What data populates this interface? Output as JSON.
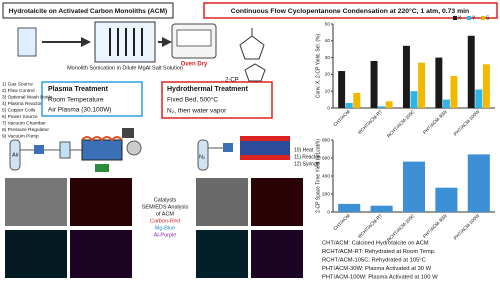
{
  "header": {
    "left_title": "Hydrotalcite on Activated Carbon Monoliths (ACM)",
    "right_title": "Continuous Flow Cyclopentanone Condensation at 220°C, 1 atm, 0.73 min"
  },
  "synthesis": {
    "step1": "Monolith Sonication in Dilute MgAl Salt Solution",
    "step2": "Oven Dry",
    "product": "2-CP"
  },
  "apparatus_legend": [
    "1) Gas Source",
    "2) Flow Control",
    "3) Optional Wash Bottle",
    "4) Plasma Reactor",
    "5) Copper Coils",
    "6) Power Source",
    "7) Vacuum Chamber",
    "8) Pressure Regulator",
    "9) Vacuum Pump"
  ],
  "apparatus_legend_right": [
    "10) Heat",
    "11) Reactor",
    "12) Syringe"
  ],
  "plasma": {
    "title": "Plasma Treatment",
    "items": [
      "Room Temperature",
      "Air Plasma (30,100W)"
    ],
    "gas": "Air"
  },
  "hydrothermal": {
    "title": "Hydrothermal Treatment",
    "items": [
      "Fixed Bed, 500°C",
      "N₂, then water vapor"
    ],
    "gas": "N₂"
  },
  "sem": {
    "caption": [
      "Catalysts",
      "SEM/EDS Analysis",
      "of ACM"
    ],
    "carbon": "Carbon-Red",
    "mg": "Mg-Blue",
    "al": "Al-Purple"
  },
  "definitions": [
    "CHT/ACM: Calcined Hydrotalcite on ACM",
    "RCHT/ACM-RT: Rehydrated at Room Temp.",
    "RCHT/ACM-105C: Rehydrated at 105°C",
    "PHT/ACM-30W: Plasma Activated at 30 W",
    "PHT/ACM-100W: Plasma Activated at 100 W"
  ],
  "chart_data": [
    {
      "type": "bar",
      "ylabel": "Conv. X, 2-CP Yield, Sel. (%)",
      "categories": [
        "CHT/ACM",
        "RCHT/ACM-RT",
        "RCHT/ACM-105C",
        "PHT/ACM-30W",
        "PHT/ACM-100W"
      ],
      "series": [
        {
          "name": "X",
          "color": "#1a1a1a",
          "values": [
            22,
            28,
            37,
            30,
            43
          ]
        },
        {
          "name": "Y",
          "color": "#2bb5e8",
          "values": [
            3,
            1,
            10,
            5,
            11
          ]
        },
        {
          "name": "S",
          "color": "#f5b800",
          "values": [
            9,
            4,
            27,
            19,
            26
          ]
        }
      ],
      "ylim": [
        0,
        50
      ],
      "yticks": [
        0,
        10,
        20,
        30,
        40,
        50
      ]
    },
    {
      "type": "bar",
      "ylabel": "2-CP Space Time Yield (g/Lcat/h)",
      "categories": [
        "CHT/ACM",
        "RCHT/ACM-RT",
        "RCHT/ACM-105C",
        "PHT/ACM-30W",
        "PHT/ACM-100W"
      ],
      "values": [
        90,
        70,
        560,
        270,
        640
      ],
      "color": "#3d8fd6",
      "ylim": [
        0,
        800
      ],
      "yticks": [
        0,
        200,
        400,
        600,
        800
      ]
    }
  ]
}
